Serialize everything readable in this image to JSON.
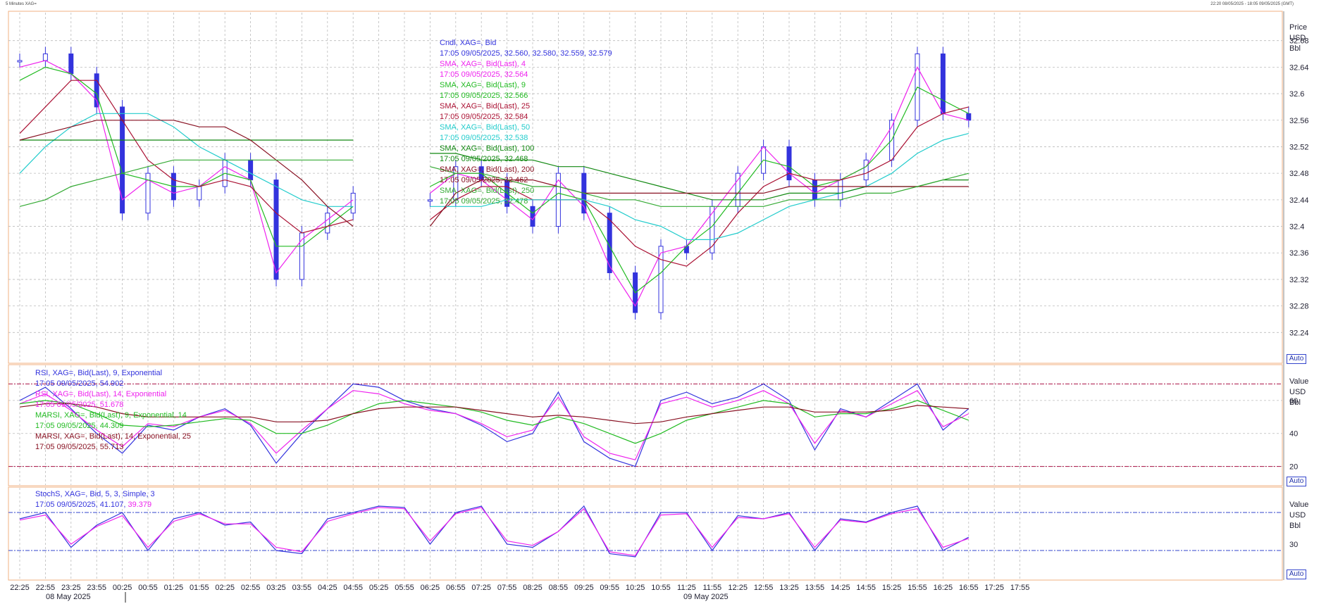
{
  "window": {
    "title": "5 Minutes XAG=",
    "right_info": "22:20 08/05/2025 - 18:05 09/05/2025 (GMT)"
  },
  "colors": {
    "candle": "#3333dd",
    "sma4": "#ee22ee",
    "sma9": "#22bb22",
    "sma25": "#aa1133",
    "sma50": "#22cccc",
    "sma100": "#118811",
    "sma200": "#881122",
    "sma250": "#33aa33",
    "rsi9": "#3333dd",
    "rsi14": "#ee22ee",
    "marsi9": "#22bb22",
    "marsi14": "#881122",
    "stoch_k": "#3333dd",
    "stoch_d": "#ee22ee",
    "grid": "#bbbbbb",
    "panel_border": "#f0b080"
  },
  "price_panel": {
    "axis_header": [
      "Price",
      "USD",
      "Bbl"
    ],
    "ticks": [
      "32.68",
      "32.64",
      "32.6",
      "32.56",
      "32.52",
      "32.48",
      "32.44",
      "32.4",
      "32.36",
      "32.32",
      "32.28",
      "32.24"
    ],
    "legend": [
      {
        "name": "Cndl, XAG=, Bid",
        "value": "17:05 09/05/2025, 32.560, 32.580, 32.559, 32.579",
        "color": "#3333dd"
      },
      {
        "name": "SMA, XAG=, Bid(Last),  4",
        "value": "17:05 09/05/2025, 32.564",
        "color": "#ee22ee"
      },
      {
        "name": "SMA, XAG=, Bid(Last),  9",
        "value": "17:05 09/05/2025, 32.566",
        "color": "#22bb22"
      },
      {
        "name": "SMA, XAG=, Bid(Last),  25",
        "value": "17:05 09/05/2025, 32.584",
        "color": "#aa1133"
      },
      {
        "name": "SMA, XAG=, Bid(Last),  50",
        "value": "17:05 09/05/2025, 32.538",
        "color": "#22cccc"
      },
      {
        "name": "SMA, XAG=, Bid(Last),  100",
        "value": "17:05 09/05/2025, 32.468",
        "color": "#118811"
      },
      {
        "name": "SMA, XAG=, Bid(Last),  200",
        "value": "17:05 09/05/2025, 32.462",
        "color": "#881122"
      },
      {
        "name": "SMA, XAG=, Bid(Last),  250",
        "value": "17:05 09/05/2025, 32.478",
        "color": "#33aa33"
      }
    ],
    "auto_label": "Auto"
  },
  "rsi_panel": {
    "axis_header": [
      "Value",
      "USD",
      "Bbl"
    ],
    "ticks": [
      "60",
      "40",
      "20"
    ],
    "legend": [
      {
        "name": "RSI, XAG=, Bid(Last),  9, Exponential",
        "value": "17:05 09/05/2025, 54.902",
        "color": "#3333dd"
      },
      {
        "name": "RSI, XAG=, Bid(Last),  14, Exponential",
        "value": "17:05 09/05/2025, 51.678",
        "color": "#ee22ee"
      },
      {
        "name": "MARSI, XAG=, Bid(Last),  9, Exponential, 14",
        "value": "17:05 09/05/2025, 44.309",
        "color": "#22bb22"
      },
      {
        "name": "MARSI, XAG=, Bid(Last),  14, Exponential, 25",
        "value": "17:05 09/05/2025, 55.713",
        "color": "#881122"
      }
    ],
    "auto_label": "Auto"
  },
  "stoch_panel": {
    "axis_header": [
      "Value",
      "USD",
      "Bbl"
    ],
    "ticks": [
      "30"
    ],
    "legend_name": "StochS, XAG=, Bid,  5, 3, Simple, 3",
    "legend_value_prefix": "17:05 09/05/2025, 41.107,",
    "legend_value_d": "39.379",
    "auto_label": "Auto"
  },
  "x_axis": {
    "labels": [
      "22:25",
      "22:55",
      "23:25",
      "23:55",
      "00:25",
      "00:55",
      "01:25",
      "01:55",
      "02:25",
      "02:55",
      "03:25",
      "03:55",
      "04:25",
      "04:55",
      "05:25",
      "05:55",
      "06:25",
      "06:55",
      "07:25",
      "07:55",
      "08:25",
      "08:55",
      "09:25",
      "09:55",
      "10:25",
      "10:55",
      "11:25",
      "11:55",
      "12:25",
      "12:55",
      "13:25",
      "13:55",
      "14:25",
      "14:55",
      "15:25",
      "15:55",
      "16:25",
      "16:55",
      "17:25",
      "17:55"
    ],
    "date_labels": [
      "08 May 2025",
      "09 May 2025"
    ]
  },
  "chart_data": {
    "type": "line",
    "title": "5 Minutes XAG=",
    "x": [
      "22:25",
      "22:55",
      "23:25",
      "23:55",
      "00:25",
      "00:55",
      "01:25",
      "01:55",
      "02:25",
      "02:55",
      "03:25",
      "03:55",
      "04:25",
      "04:55",
      "05:25",
      "05:55",
      "06:25",
      "06:55",
      "07:25",
      "07:55",
      "08:25",
      "08:55",
      "09:25",
      "09:55",
      "10:25",
      "10:55",
      "11:25",
      "11:55",
      "12:25",
      "12:55",
      "13:25",
      "13:55",
      "14:25",
      "14:55",
      "15:25",
      "15:55",
      "16:25",
      "16:55"
    ],
    "ylim": [
      32.2,
      32.72
    ],
    "series": [
      {
        "name": "Cndl, XAG=, Bid",
        "values": [
          32.65,
          32.66,
          32.63,
          32.58,
          32.42,
          32.48,
          32.44,
          32.46,
          32.5,
          32.47,
          32.32,
          32.39,
          32.42,
          32.45,
          null,
          null,
          32.44,
          32.49,
          32.47,
          32.43,
          32.4,
          32.48,
          32.42,
          32.33,
          32.27,
          32.37,
          32.36,
          32.43,
          32.48,
          32.52,
          32.47,
          32.44,
          32.47,
          32.5,
          32.56,
          32.66,
          32.57,
          32.56
        ]
      },
      {
        "name": "SMA, XAG=, Bid(Last),  4",
        "values": [
          32.64,
          32.65,
          32.63,
          32.59,
          32.44,
          32.47,
          32.45,
          32.46,
          32.49,
          32.47,
          32.33,
          32.38,
          32.41,
          32.44,
          null,
          null,
          32.45,
          32.48,
          32.47,
          32.44,
          32.41,
          32.47,
          32.43,
          32.34,
          32.28,
          32.36,
          32.37,
          32.42,
          32.47,
          32.52,
          32.48,
          32.45,
          32.47,
          32.49,
          32.55,
          32.64,
          32.57,
          32.56
        ]
      },
      {
        "name": "SMA, XAG=, Bid(Last),  9",
        "values": [
          32.62,
          32.64,
          32.63,
          32.6,
          32.48,
          32.47,
          32.46,
          32.46,
          32.48,
          32.47,
          32.37,
          32.37,
          32.4,
          32.43,
          null,
          null,
          32.46,
          32.48,
          32.48,
          32.45,
          32.42,
          32.45,
          32.44,
          32.37,
          32.3,
          32.33,
          32.37,
          32.4,
          32.45,
          32.5,
          32.49,
          32.46,
          32.47,
          32.49,
          32.53,
          32.61,
          32.59,
          32.57
        ]
      },
      {
        "name": "SMA, XAG=, Bid(Last),  25",
        "values": [
          32.54,
          32.58,
          32.62,
          32.62,
          32.56,
          32.5,
          32.47,
          32.46,
          32.47,
          32.46,
          32.42,
          32.39,
          32.4,
          32.41,
          null,
          null,
          32.41,
          32.44,
          32.46,
          32.46,
          32.44,
          32.44,
          32.44,
          32.41,
          32.37,
          32.35,
          32.34,
          32.37,
          32.42,
          32.46,
          32.48,
          32.47,
          32.47,
          32.48,
          32.5,
          32.55,
          32.57,
          32.58
        ]
      },
      {
        "name": "SMA, XAG=, Bid(Last),  50",
        "values": [
          32.48,
          32.52,
          32.55,
          32.57,
          32.57,
          32.57,
          32.55,
          32.52,
          32.5,
          32.48,
          32.46,
          32.44,
          32.43,
          32.43,
          null,
          null,
          32.43,
          32.43,
          32.43,
          32.44,
          32.44,
          32.44,
          32.44,
          32.43,
          32.41,
          32.4,
          32.38,
          32.38,
          32.39,
          32.41,
          32.43,
          32.44,
          32.45,
          32.46,
          32.48,
          32.51,
          32.53,
          32.54
        ]
      },
      {
        "name": "SMA, XAG=, Bid(Last),  100",
        "values": [
          32.53,
          32.53,
          32.53,
          32.53,
          32.53,
          32.53,
          32.53,
          32.53,
          32.53,
          32.53,
          32.53,
          32.53,
          32.53,
          32.53,
          null,
          null,
          32.51,
          32.51,
          32.5,
          32.5,
          32.5,
          32.49,
          32.49,
          32.48,
          32.47,
          32.46,
          32.45,
          32.44,
          32.44,
          32.44,
          32.45,
          32.45,
          32.45,
          32.46,
          32.46,
          32.46,
          32.47,
          32.47
        ]
      },
      {
        "name": "SMA, XAG=, Bid(Last),  200",
        "values": [
          32.53,
          32.54,
          32.55,
          32.56,
          32.56,
          32.56,
          32.56,
          32.55,
          32.55,
          32.53,
          32.5,
          32.47,
          32.43,
          32.4,
          null,
          null,
          32.4,
          32.45,
          32.47,
          32.47,
          32.47,
          32.46,
          32.45,
          32.45,
          32.45,
          32.45,
          32.45,
          32.45,
          32.45,
          32.45,
          32.46,
          32.46,
          32.46,
          32.46,
          32.46,
          32.46,
          32.46,
          32.46
        ]
      },
      {
        "name": "SMA, XAG=, Bid(Last),  250",
        "values": [
          32.43,
          32.44,
          32.46,
          32.47,
          32.48,
          32.49,
          32.5,
          32.5,
          32.5,
          32.5,
          32.5,
          32.5,
          32.5,
          32.5,
          null,
          null,
          32.49,
          32.48,
          32.48,
          32.47,
          32.46,
          32.46,
          32.45,
          32.44,
          32.44,
          32.43,
          32.43,
          32.43,
          32.43,
          32.43,
          32.44,
          32.44,
          32.44,
          32.45,
          32.45,
          32.46,
          32.47,
          32.48
        ]
      }
    ],
    "rsi": {
      "ylim": [
        10,
        80
      ],
      "series": [
        {
          "name": "RSI, XAG=, Bid(Last),  9, Exponential",
          "values": [
            60,
            68,
            55,
            40,
            28,
            45,
            42,
            50,
            55,
            45,
            22,
            40,
            55,
            70,
            68,
            60,
            55,
            52,
            45,
            35,
            40,
            65,
            35,
            25,
            20,
            60,
            65,
            58,
            62,
            70,
            60,
            30,
            55,
            50,
            60,
            70,
            42,
            55
          ]
        },
        {
          "name": "RSI, XAG=, Bid(Last),  14, Exponential",
          "values": [
            58,
            64,
            54,
            42,
            32,
            46,
            44,
            50,
            54,
            46,
            28,
            42,
            55,
            66,
            64,
            58,
            54,
            52,
            46,
            38,
            42,
            62,
            38,
            28,
            24,
            58,
            62,
            56,
            60,
            66,
            58,
            34,
            54,
            50,
            58,
            66,
            44,
            52
          ]
        },
        {
          "name": "MARSI, XAG=, Bid(Last),  9, Exponential, 14",
          "values": [
            58,
            60,
            58,
            52,
            45,
            44,
            45,
            47,
            49,
            48,
            40,
            40,
            45,
            52,
            58,
            60,
            58,
            56,
            53,
            48,
            45,
            50,
            46,
            40,
            34,
            40,
            48,
            52,
            56,
            60,
            58,
            50,
            52,
            52,
            55,
            60,
            54,
            48
          ]
        },
        {
          "name": "MARSI, XAG=, Bid(Last),  14, Exponential, 25",
          "values": [
            56,
            58,
            58,
            56,
            52,
            50,
            50,
            50,
            50,
            50,
            47,
            47,
            48,
            52,
            55,
            56,
            56,
            56,
            54,
            52,
            50,
            51,
            50,
            48,
            46,
            47,
            50,
            52,
            54,
            56,
            56,
            53,
            53,
            53,
            54,
            57,
            56,
            55
          ]
        }
      ]
    },
    "stochastic": {
      "ylim": [
        0,
        100
      ],
      "series": [
        {
          "name": "StochS %K",
          "values": [
            70,
            80,
            25,
            60,
            80,
            20,
            70,
            80,
            60,
            65,
            20,
            15,
            70,
            80,
            90,
            88,
            30,
            80,
            90,
            30,
            25,
            50,
            90,
            15,
            10,
            80,
            80,
            20,
            75,
            70,
            80,
            20,
            70,
            65,
            80,
            90,
            20,
            41
          ]
        },
        {
          "name": "StochS %D",
          "values": [
            68,
            76,
            30,
            58,
            75,
            25,
            66,
            78,
            62,
            62,
            25,
            18,
            66,
            78,
            88,
            86,
            35,
            78,
            88,
            35,
            28,
            50,
            86,
            18,
            12,
            76,
            78,
            25,
            72,
            70,
            78,
            25,
            68,
            64,
            78,
            86,
            25,
            39
          ]
        }
      ]
    }
  }
}
